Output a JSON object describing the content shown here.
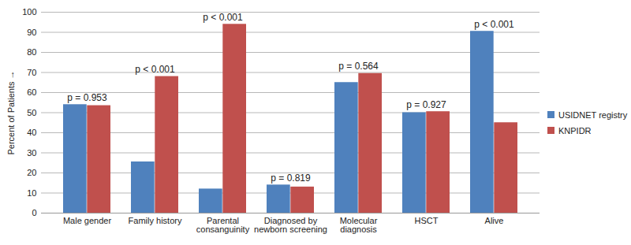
{
  "chart_data": {
    "type": "bar",
    "y_label": "Percent of Patients",
    "categories": [
      "Male gender",
      "Family history",
      "Parental consanguinity",
      "Diagnosed by newborn screening",
      "Molecular diagnosis",
      "HSCT",
      "Alive"
    ],
    "series": [
      {
        "name": "USIDNET registry",
        "color": "#4f81bd",
        "values": [
          54,
          25.5,
          12,
          14,
          65,
          50,
          90.5
        ]
      },
      {
        "name": "KNPIDR",
        "color": "#c0504d",
        "values": [
          53.5,
          68,
          94,
          13,
          69.5,
          50.5,
          45
        ]
      }
    ],
    "annotations": [
      "p = 0.953",
      "p < 0.001",
      "p < 0.001",
      "p = 0.819",
      "p = 0.564",
      "p = 0.927",
      "p < 0.001"
    ],
    "ylim": [
      0,
      100
    ],
    "yticks": [
      0,
      10,
      20,
      30,
      40,
      50,
      60,
      70,
      80,
      90,
      100
    ],
    "grid": true,
    "legend": "right"
  }
}
